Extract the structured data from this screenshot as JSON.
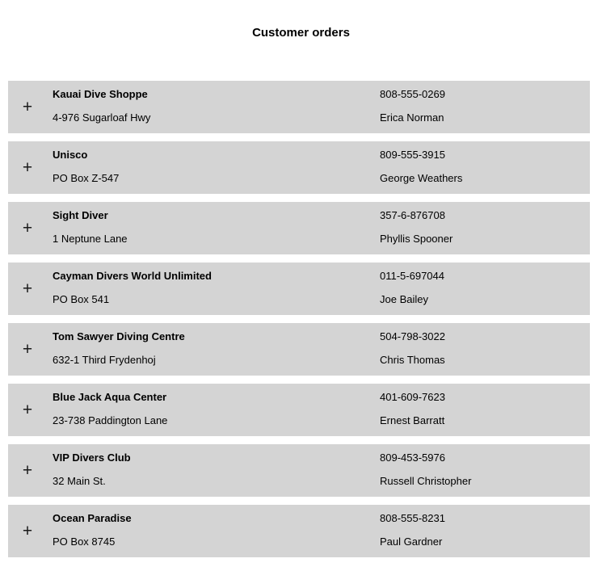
{
  "page": {
    "title": "Customer orders"
  },
  "colors": {
    "page_background": "#ffffff",
    "row_background": "#d4d4d4",
    "text": "#000000"
  },
  "icons": {
    "expand_glyph": "+"
  },
  "customers": [
    {
      "name": "Kauai Dive Shoppe",
      "address": "4-976 Sugarloaf Hwy",
      "phone": "808-555-0269",
      "contact": "Erica Norman"
    },
    {
      "name": "Unisco",
      "address": "PO Box Z-547",
      "phone": "809-555-3915",
      "contact": "George Weathers"
    },
    {
      "name": "Sight Diver",
      "address": "1 Neptune Lane",
      "phone": "357-6-876708",
      "contact": "Phyllis Spooner"
    },
    {
      "name": "Cayman Divers World Unlimited",
      "address": "PO Box 541",
      "phone": "011-5-697044",
      "contact": "Joe Bailey"
    },
    {
      "name": "Tom Sawyer Diving Centre",
      "address": "632-1 Third Frydenhoj",
      "phone": "504-798-3022",
      "contact": "Chris Thomas"
    },
    {
      "name": "Blue Jack Aqua Center",
      "address": "23-738 Paddington Lane",
      "phone": "401-609-7623",
      "contact": "Ernest Barratt"
    },
    {
      "name": "VIP Divers Club",
      "address": "32 Main St.",
      "phone": "809-453-5976",
      "contact": "Russell Christopher"
    },
    {
      "name": "Ocean Paradise",
      "address": "PO Box 8745",
      "phone": "808-555-8231",
      "contact": "Paul Gardner"
    }
  ]
}
